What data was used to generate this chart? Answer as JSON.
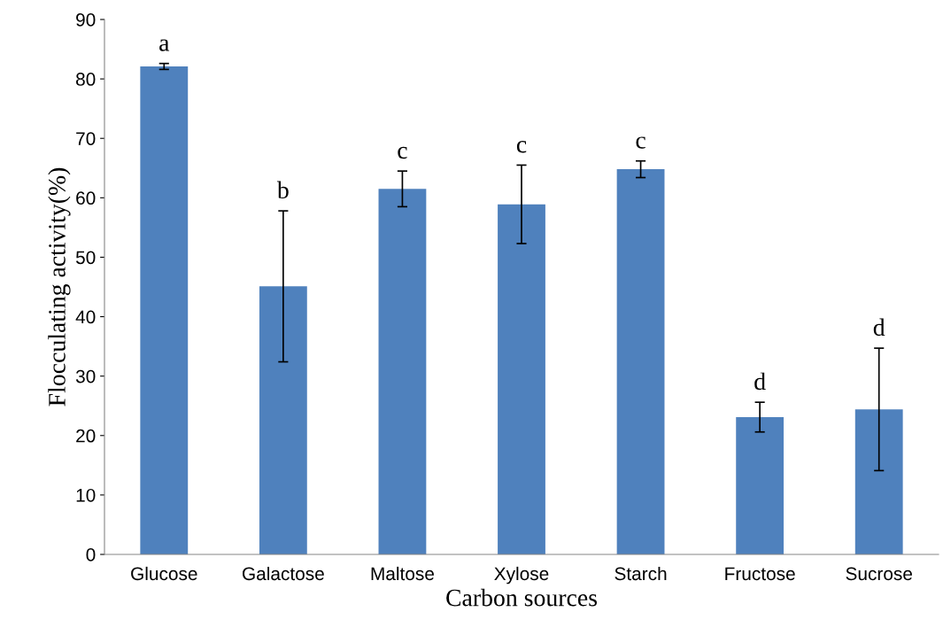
{
  "chart_data": {
    "type": "bar",
    "xlabel": "Carbon sources",
    "ylabel": "Flocculating activity(%)",
    "categories": [
      "Glucose",
      "Galactose",
      "Maltose",
      "Xylose",
      "Starch",
      "Fructose",
      "Sucrose"
    ],
    "values": [
      82.1,
      45.1,
      61.5,
      58.9,
      64.8,
      23.1,
      24.4
    ],
    "errors": [
      0.5,
      12.7,
      3.0,
      6.6,
      1.4,
      2.5,
      10.3
    ],
    "color": "#4f81bd",
    "ylim": [
      0,
      90
    ],
    "yticks": [
      0,
      10,
      20,
      30,
      40,
      50,
      60,
      70,
      80,
      90
    ],
    "grid": false,
    "annotations": [
      {
        "text": "a",
        "x": "Glucose",
        "y": 82.6
      },
      {
        "text": "b",
        "x": "Galactose",
        "y": 57.8
      },
      {
        "text": "c",
        "x": "Maltose",
        "y": 64.5
      },
      {
        "text": "c",
        "x": "Xylose",
        "y": 65.5
      },
      {
        "text": "c",
        "x": "Starch",
        "y": 66.2
      },
      {
        "text": "d",
        "x": "Fructose",
        "y": 25.6
      },
      {
        "text": "d",
        "x": "Sucrose",
        "y": 34.7
      }
    ]
  }
}
